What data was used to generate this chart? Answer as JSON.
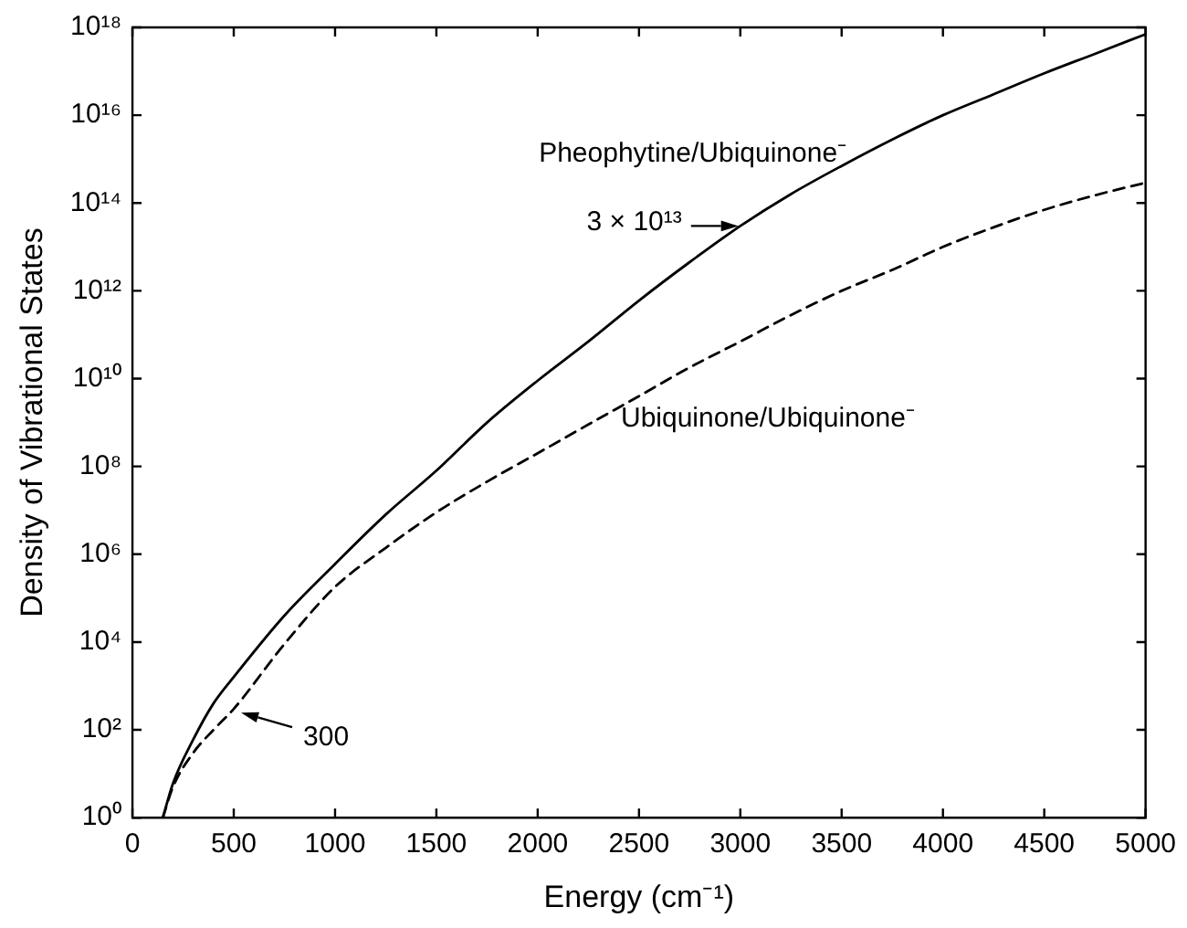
{
  "chart_data": {
    "type": "line",
    "xlabel": "Energy (cm⁻¹)",
    "ylabel": "Density of Vibrational States",
    "log": "y",
    "marker": "none",
    "legend": false,
    "grid": false,
    "xlim": [
      0,
      5000
    ],
    "xticks": [
      0,
      500,
      1000,
      1500,
      2000,
      2500,
      3000,
      3500,
      4000,
      4500,
      5000
    ],
    "ylim": [
      1,
      1e+18
    ],
    "yticks": [
      {
        "value": 1,
        "label": "10⁰"
      },
      {
        "value": 100,
        "label": "10²"
      },
      {
        "value": 10000,
        "label": "10⁴"
      },
      {
        "value": 1000000,
        "label": "10⁶"
      },
      {
        "value": 100000000,
        "label": "10⁸"
      },
      {
        "value": 10000000000,
        "label": "10¹⁰"
      },
      {
        "value": 1000000000000,
        "label": "10¹²"
      },
      {
        "value": 100000000000000,
        "label": "10¹⁴"
      },
      {
        "value": 10000000000000000,
        "label": "10¹⁶"
      },
      {
        "value": 1000000000000000000,
        "label": "10¹⁸"
      }
    ],
    "series": [
      {
        "name": "Pheophytine/Ubiquinone⁻",
        "color": "#000000",
        "line_style": "solid",
        "x": [
          150,
          200,
          300,
          400,
          500,
          750,
          1000,
          1250,
          1500,
          1750,
          2000,
          2250,
          2500,
          2750,
          3000,
          3250,
          3500,
          3750,
          4000,
          4250,
          4500,
          4750,
          5000
        ],
        "values": [
          1,
          6,
          60,
          400,
          1600,
          40000,
          600000,
          8000000,
          80000000,
          1000000000,
          9000000000,
          70000000000,
          600000000000,
          4500000000000,
          30000000000000,
          160000000000000,
          700000000000000,
          2800000000000000,
          10000000000000000,
          30000000000000000,
          90000000000000000,
          250000000000000000,
          700000000000000000
        ]
      },
      {
        "name": "Ubiquinone/Ubiquinone⁻",
        "color": "#000000",
        "line_style": "dashed",
        "x": [
          150,
          200,
          300,
          400,
          500,
          750,
          1000,
          1250,
          1500,
          1750,
          2000,
          2250,
          2500,
          2750,
          3000,
          3250,
          3500,
          3750,
          4000,
          4250,
          4500,
          4750,
          5000
        ],
        "values": [
          1,
          5,
          30,
          100,
          300,
          9000,
          180000,
          1400000,
          9000000,
          45000000,
          200000000,
          900000000,
          4000000000,
          18000000000,
          70000000000,
          280000000000,
          1000000000000,
          3000000000000,
          10000000000000,
          28000000000000,
          70000000000000,
          150000000000000,
          290000000000000
        ]
      }
    ],
    "annotations": [
      {
        "text": "3 × 10¹³",
        "x": 3000,
        "y": 30000000000000
      },
      {
        "text": "300",
        "x": 500,
        "y": 300
      }
    ]
  }
}
